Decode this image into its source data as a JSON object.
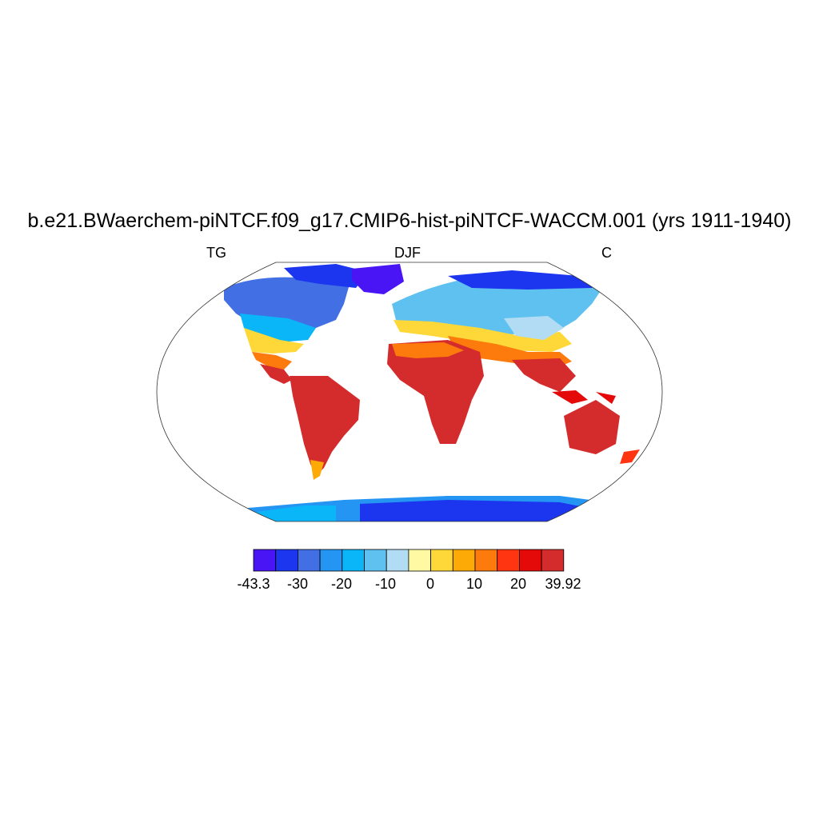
{
  "title": "b.e21.BWaerchem-piNTCF.f09_g17.CMIP6-hist-piNTCF-WACCM.001 (yrs 1911-1940)",
  "subtitle_left": "TG",
  "subtitle_center": "DJF",
  "subtitle_right": "C",
  "colorbar": {
    "colors": [
      "#4a15f5",
      "#1b36ee",
      "#4270e4",
      "#2595f3",
      "#0ab5f8",
      "#5ec1ef",
      "#b2dcf3",
      "#fff9a3",
      "#fed838",
      "#fdaa07",
      "#fd7a0c",
      "#ff3512",
      "#e50a0a",
      "#d42c2c"
    ],
    "labels": [
      "-43.3",
      "-30",
      "-20",
      "-10",
      "0",
      "10",
      "20",
      "39.92"
    ],
    "min": -43.3,
    "max": 39.92
  }
}
